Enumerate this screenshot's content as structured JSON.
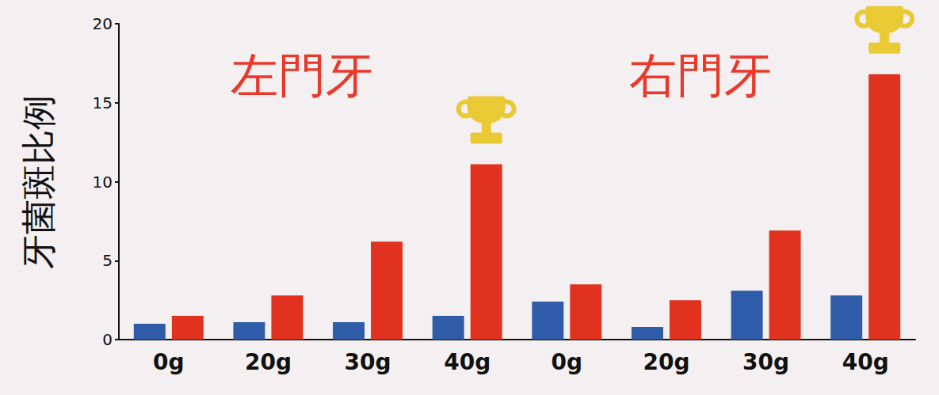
{
  "chart_data": {
    "type": "bar",
    "y_label": "牙菌斑比例",
    "annotations": [
      "左門牙",
      "右門牙"
    ],
    "categories": [
      "0g",
      "20g",
      "30g",
      "40g",
      "0g",
      "20g",
      "30g",
      "40g"
    ],
    "series": [
      {
        "color": "#2f5ca8",
        "values": [
          1.0,
          1.1,
          1.1,
          1.5,
          2.4,
          0.8,
          3.1,
          2.8
        ]
      },
      {
        "color": "#e0321e",
        "values": [
          1.5,
          2.8,
          6.2,
          11.1,
          3.5,
          2.5,
          6.9,
          16.8
        ]
      }
    ],
    "ylim": [
      0,
      20
    ],
    "yticks": [
      0,
      5,
      10,
      15,
      20
    ],
    "grid": false
  }
}
